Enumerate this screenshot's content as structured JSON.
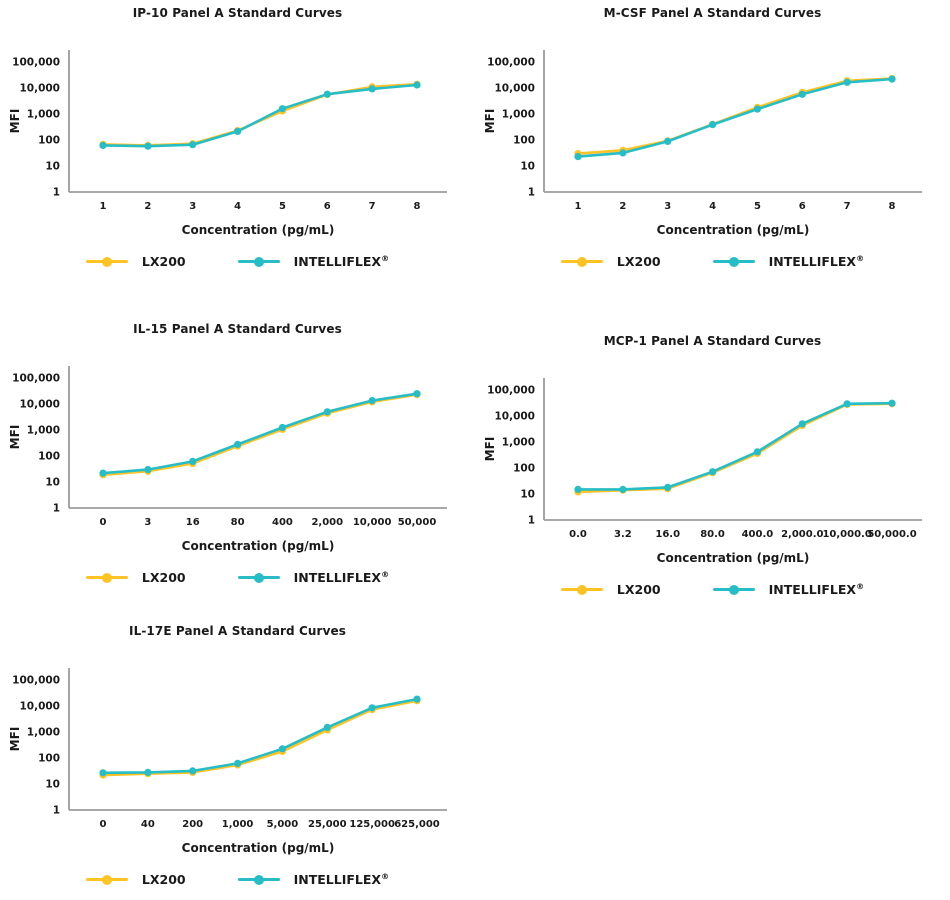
{
  "page": {
    "background": "#FFFFFF"
  },
  "colors": {
    "lx200": "#FFC324",
    "intelliflex": "#26BDC7",
    "axis": "#9B9B9B",
    "text": "#1A1A1A"
  },
  "legend": {
    "lx200_label": "LX200",
    "intelliflex_label": "INTELLIFLEX",
    "registered_mark": "®"
  },
  "chart_data": [
    {
      "type": "line",
      "title": "IP-10 Panel A Standard Curves",
      "xlabel": "Concentration (pg/mL)",
      "ylabel": "MFI",
      "yscale": "log",
      "ylim": [
        1,
        100000
      ],
      "yticks": [
        "1",
        "10",
        "100",
        "1,000",
        "10,000",
        "100,000"
      ],
      "grid": false,
      "legend_position": "bottom",
      "categories": [
        "1",
        "2",
        "3",
        "4",
        "5",
        "6",
        "7",
        "8"
      ],
      "series": [
        {
          "name": "LX200",
          "key": "lx200",
          "color": "#FFC324",
          "values": [
            68,
            62,
            72,
            230,
            1300,
            5600,
            11000,
            14000
          ]
        },
        {
          "name": "INTELLIFLEX®",
          "key": "intelliflex",
          "color": "#26BDC7",
          "values": [
            62,
            58,
            66,
            215,
            1600,
            5800,
            9200,
            13000
          ]
        }
      ]
    },
    {
      "type": "line",
      "title": "M-CSF Panel A Standard Curves",
      "xlabel": "Concentration (pg/mL)",
      "ylabel": "MFI",
      "yscale": "log",
      "ylim": [
        1,
        100000
      ],
      "yticks": [
        "1",
        "10",
        "100",
        "1,000",
        "10,000",
        "100,000"
      ],
      "grid": false,
      "legend_position": "bottom",
      "categories": [
        "1",
        "2",
        "3",
        "4",
        "5",
        "6",
        "7",
        "8"
      ],
      "series": [
        {
          "name": "LX200",
          "key": "lx200",
          "color": "#FFC324",
          "values": [
            30,
            40,
            92,
            400,
            1800,
            6800,
            19000,
            23000
          ]
        },
        {
          "name": "INTELLIFLEX®",
          "key": "intelliflex",
          "color": "#26BDC7",
          "values": [
            23,
            32,
            88,
            390,
            1550,
            5700,
            16500,
            22000
          ]
        }
      ]
    },
    {
      "type": "line",
      "title": "IL-15 Panel A Standard Curves",
      "xlabel": "Concentration (pg/mL)",
      "ylabel": "MFI",
      "yscale": "log",
      "ylim": [
        1,
        100000
      ],
      "yticks": [
        "1",
        "10",
        "100",
        "1,000",
        "10,000",
        "100,000"
      ],
      "grid": false,
      "legend_position": "bottom",
      "categories": [
        "0",
        "3",
        "16",
        "80",
        "400",
        "2,000",
        "10,000",
        "50,000"
      ],
      "series": [
        {
          "name": "LX200",
          "key": "lx200",
          "color": "#FFC324",
          "values": [
            19,
            26,
            52,
            240,
            1050,
            4400,
            12000,
            23000
          ]
        },
        {
          "name": "INTELLIFLEX®",
          "key": "intelliflex",
          "color": "#26BDC7",
          "values": [
            22,
            30,
            62,
            280,
            1250,
            5000,
            13500,
            25000
          ]
        }
      ]
    },
    {
      "type": "line",
      "title": "MCP-1 Panel A Standard Curves",
      "xlabel": "Concentration (pg/mL)",
      "ylabel": "MFI",
      "yscale": "log",
      "ylim": [
        1,
        100000
      ],
      "yticks": [
        "1",
        "10",
        "100",
        "1,000",
        "10,000",
        "100,000"
      ],
      "grid": false,
      "legend_position": "bottom",
      "categories": [
        "0.0",
        "3.2",
        "16.0",
        "80.0",
        "400.0",
        "2,000.0",
        "10,000.0",
        "50,000.0"
      ],
      "series": [
        {
          "name": "LX200",
          "key": "lx200",
          "color": "#FFC324",
          "values": [
            12,
            14,
            16,
            66,
            360,
            4300,
            28000,
            29500
          ]
        },
        {
          "name": "INTELLIFLEX®",
          "key": "intelliflex",
          "color": "#26BDC7",
          "values": [
            15,
            15,
            18,
            72,
            420,
            5000,
            29500,
            31000
          ]
        }
      ]
    },
    {
      "type": "line",
      "title": "IL-17E Panel A Standard Curves",
      "xlabel": "Concentration (pg/mL)",
      "ylabel": "MFI",
      "yscale": "log",
      "ylim": [
        1,
        100000
      ],
      "yticks": [
        "1",
        "10",
        "100",
        "1,000",
        "10,000",
        "100,000"
      ],
      "grid": false,
      "legend_position": "bottom",
      "categories": [
        "0",
        "40",
        "200",
        "1,000",
        "5,000",
        "25,000",
        "125,000",
        "625,000"
      ],
      "series": [
        {
          "name": "LX200",
          "key": "lx200",
          "color": "#FFC324",
          "values": [
            22,
            25,
            28,
            54,
            180,
            1200,
            7300,
            16000
          ]
        },
        {
          "name": "INTELLIFLEX®",
          "key": "intelliflex",
          "color": "#26BDC7",
          "values": [
            27,
            28,
            32,
            62,
            225,
            1500,
            8500,
            18500
          ]
        }
      ]
    }
  ]
}
